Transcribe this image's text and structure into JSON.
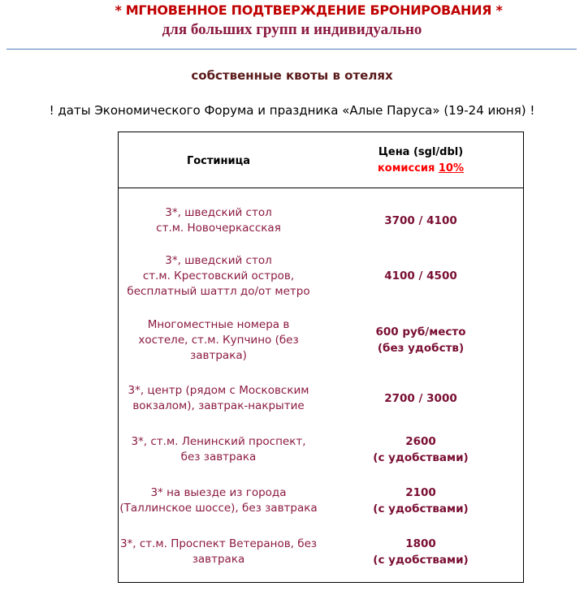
{
  "header": {
    "title": "* МГНОВЕННОЕ ПОДТВЕРЖДЕНИЕ БРОНИРОВАНИЯ *",
    "subtitle": "для больших групп и индивидуально",
    "quotas": "собственные квоты в отелях",
    "note": "! даты Экономического Форума и праздника «Алые Паруса» (19-24 июня) !"
  },
  "table": {
    "col_hotel": "Гостиница",
    "col_price": "Цена (sgl/dbl)",
    "commission_label": "комиссия",
    "commission_value": "10%",
    "rows": [
      {
        "hotel": [
          "3*, шведский стол",
          "ст.м. Новочеркасская"
        ],
        "price": [
          "3700 / 4100"
        ]
      },
      {
        "hotel": [
          "3*, шведский стол",
          "ст.м. Крестовский остров,",
          "бесплатный шаттл до/от метро"
        ],
        "price": [
          "4100 / 4500"
        ]
      },
      {
        "hotel": [
          "Многоместные номера в",
          "хостеле, ст.м. Купчино (без",
          "завтрака)"
        ],
        "price": [
          "600 руб/место",
          "(без удобств)"
        ]
      },
      {
        "hotel": [
          "3*, центр (рядом с Московским",
          "вокзалом), завтрак-накрытие"
        ],
        "price": [
          "2700 / 3000"
        ]
      },
      {
        "hotel": [
          "3*, ст.м. Ленинский проспект,",
          "без завтрака"
        ],
        "price": [
          "2600",
          "(с удобствами)"
        ]
      },
      {
        "hotel": [
          "3* на выезде из города",
          "(Таллинское шоссе), без завтрака"
        ],
        "price": [
          "2100",
          "(с удобствами)"
        ]
      },
      {
        "hotel": [
          "3*, ст.м. Проспект Ветеранов, без",
          "завтрака"
        ],
        "price": [
          "1800",
          "(с удобствами)"
        ]
      }
    ]
  }
}
